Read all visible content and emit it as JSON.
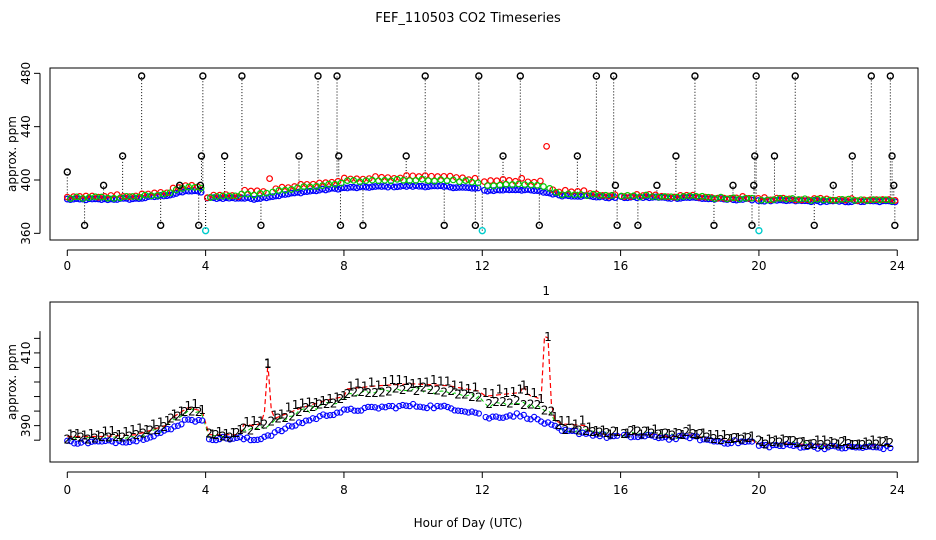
{
  "chart_data": {
    "title": "FEF_110503  CO2 Timeseries",
    "xlabel": "Hour of Day (UTC)",
    "panels": [
      {
        "name": "top",
        "type": "scatter",
        "ylabel": "approx. ppm",
        "xlim": [
          -0.5,
          24.6
        ],
        "ylim": [
          355,
          484
        ],
        "xticks": [
          0,
          4,
          8,
          12,
          16,
          20,
          24
        ],
        "yticks": [
          360,
          400,
          440,
          480
        ],
        "series": [
          {
            "name": "blue",
            "color": "#0000ff"
          },
          {
            "name": "red",
            "color": "#ff0000"
          },
          {
            "name": "green",
            "color": "#00cc00"
          },
          {
            "name": "black",
            "color": "#000000"
          },
          {
            "name": "cyan",
            "color": "#00cccc"
          }
        ],
        "outliers_black": [
          {
            "x": 0.0,
            "y": 406
          },
          {
            "x": 0.5,
            "y": 366
          },
          {
            "x": 1.05,
            "y": 396
          },
          {
            "x": 1.6,
            "y": 418
          },
          {
            "x": 2.15,
            "y": 478
          },
          {
            "x": 2.7,
            "y": 366
          },
          {
            "x": 3.25,
            "y": 396
          },
          {
            "x": 3.8,
            "y": 366
          },
          {
            "x": 3.85,
            "y": 396
          },
          {
            "x": 3.88,
            "y": 418
          },
          {
            "x": 3.92,
            "y": 478
          },
          {
            "x": 4.55,
            "y": 418
          },
          {
            "x": 5.05,
            "y": 478
          },
          {
            "x": 5.6,
            "y": 366
          },
          {
            "x": 6.7,
            "y": 418
          },
          {
            "x": 7.25,
            "y": 478
          },
          {
            "x": 7.8,
            "y": 478
          },
          {
            "x": 7.85,
            "y": 418
          },
          {
            "x": 7.9,
            "y": 366
          },
          {
            "x": 8.55,
            "y": 366
          },
          {
            "x": 9.8,
            "y": 418
          },
          {
            "x": 10.35,
            "y": 478
          },
          {
            "x": 10.9,
            "y": 366
          },
          {
            "x": 11.8,
            "y": 366
          },
          {
            "x": 11.9,
            "y": 478
          },
          {
            "x": 12.6,
            "y": 418
          },
          {
            "x": 13.1,
            "y": 478
          },
          {
            "x": 13.65,
            "y": 366
          },
          {
            "x": 14.75,
            "y": 418
          },
          {
            "x": 15.3,
            "y": 478
          },
          {
            "x": 15.8,
            "y": 478
          },
          {
            "x": 15.85,
            "y": 396
          },
          {
            "x": 15.9,
            "y": 366
          },
          {
            "x": 16.5,
            "y": 366
          },
          {
            "x": 17.05,
            "y": 396
          },
          {
            "x": 17.6,
            "y": 418
          },
          {
            "x": 18.15,
            "y": 478
          },
          {
            "x": 18.7,
            "y": 366
          },
          {
            "x": 19.25,
            "y": 396
          },
          {
            "x": 19.8,
            "y": 366
          },
          {
            "x": 19.85,
            "y": 396
          },
          {
            "x": 19.88,
            "y": 418
          },
          {
            "x": 19.92,
            "y": 478
          },
          {
            "x": 20.45,
            "y": 418
          },
          {
            "x": 21.05,
            "y": 478
          },
          {
            "x": 21.6,
            "y": 366
          },
          {
            "x": 22.15,
            "y": 396
          },
          {
            "x": 22.7,
            "y": 418
          },
          {
            "x": 23.25,
            "y": 478
          },
          {
            "x": 23.8,
            "y": 478
          },
          {
            "x": 23.85,
            "y": 418
          },
          {
            "x": 23.9,
            "y": 396
          },
          {
            "x": 23.93,
            "y": 366
          }
        ],
        "outliers_cyan": [
          {
            "x": 4.0,
            "y": 362
          },
          {
            "x": 12.0,
            "y": 362
          },
          {
            "x": 20.0,
            "y": 362
          }
        ]
      },
      {
        "name": "bottom",
        "type": "scatter",
        "ylabel": "approx. ppm",
        "xlim": [
          -0.5,
          24.6
        ],
        "ylim": [
          380,
          424
        ],
        "xticks": [
          0,
          4,
          8,
          12,
          16,
          20,
          24
        ],
        "yticks": [
          390,
          410
        ],
        "series": [
          {
            "name": "1",
            "label": "1",
            "color": "#ff0000"
          },
          {
            "name": "2",
            "label": "2",
            "color": "#00cc00"
          },
          {
            "name": "3",
            "label": "3",
            "color": "#0000ff"
          }
        ]
      }
    ],
    "base_series": {
      "note": "blue / series-3 baseline (ppm) over hour of day",
      "x": [
        0,
        1,
        2,
        3,
        3.5,
        3.9,
        4.0,
        5.0,
        5.4,
        6.0,
        6.8,
        7.5,
        8.0,
        9.0,
        10.0,
        11.0,
        11.9,
        12.0,
        13.0,
        13.5,
        14.0,
        14.3,
        15.0,
        15.6,
        16.0,
        17.0,
        17.5,
        18.0,
        18.5,
        19.0,
        19.9,
        20.0,
        21.0,
        22.0,
        23.0,
        23.9
      ],
      "y": [
        385.5,
        385.5,
        386,
        389,
        392,
        391,
        386.5,
        386.5,
        386,
        388,
        391,
        393,
        394,
        395,
        395.5,
        395,
        393.5,
        392,
        393,
        392,
        390,
        388.5,
        388,
        387,
        387,
        387,
        386.5,
        387,
        386,
        385.5,
        385.5,
        384.5,
        384.5,
        384,
        384,
        384
      ]
    },
    "red_spikes": [
      {
        "x": 5.8,
        "y": 407
      },
      {
        "x": 13.2,
        "y": 401
      },
      {
        "x": 13.85,
        "y": 427
      }
    ]
  }
}
